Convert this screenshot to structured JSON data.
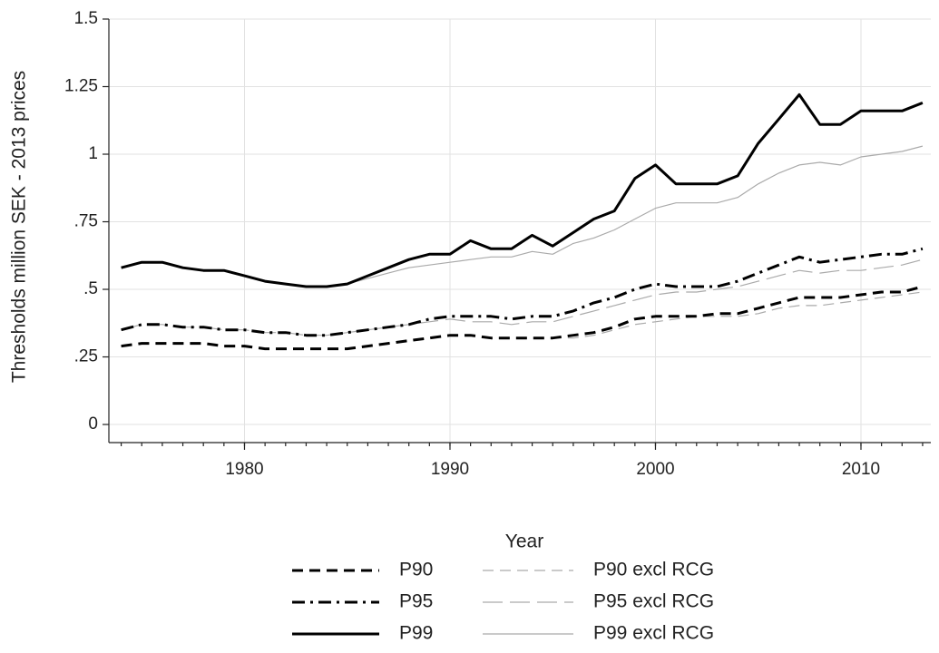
{
  "chart_data": {
    "type": "line",
    "y_label": "Thresholds million SEK - 2013 prices",
    "x_label": "Year",
    "x": [
      1974,
      1975,
      1976,
      1977,
      1978,
      1979,
      1980,
      1981,
      1982,
      1983,
      1984,
      1985,
      1986,
      1987,
      1988,
      1989,
      1990,
      1991,
      1992,
      1993,
      1994,
      1995,
      1996,
      1997,
      1998,
      1999,
      2000,
      2001,
      2002,
      2003,
      2004,
      2005,
      2006,
      2007,
      2008,
      2009,
      2010,
      2011,
      2012,
      2013
    ],
    "series": [
      {
        "name": "P90",
        "color": "#000000",
        "dash": "dash",
        "values": [
          0.29,
          0.3,
          0.3,
          0.3,
          0.3,
          0.29,
          0.29,
          0.28,
          0.28,
          0.28,
          0.28,
          0.28,
          0.29,
          0.3,
          0.31,
          0.32,
          0.33,
          0.33,
          0.32,
          0.32,
          0.32,
          0.32,
          0.33,
          0.34,
          0.36,
          0.39,
          0.4,
          0.4,
          0.4,
          0.41,
          0.41,
          0.43,
          0.45,
          0.47,
          0.47,
          0.47,
          0.48,
          0.49,
          0.49,
          0.51
        ]
      },
      {
        "name": "P95",
        "color": "#000000",
        "dash": "dashdot",
        "values": [
          0.35,
          0.37,
          0.37,
          0.36,
          0.36,
          0.35,
          0.35,
          0.34,
          0.34,
          0.33,
          0.33,
          0.34,
          0.35,
          0.36,
          0.37,
          0.39,
          0.4,
          0.4,
          0.4,
          0.39,
          0.4,
          0.4,
          0.42,
          0.45,
          0.47,
          0.5,
          0.52,
          0.51,
          0.51,
          0.51,
          0.53,
          0.56,
          0.59,
          0.62,
          0.6,
          0.61,
          0.62,
          0.63,
          0.63,
          0.65
        ]
      },
      {
        "name": "P99",
        "color": "#000000",
        "dash": "solid",
        "values": [
          0.58,
          0.6,
          0.6,
          0.58,
          0.57,
          0.57,
          0.55,
          0.53,
          0.52,
          0.51,
          0.51,
          0.52,
          0.55,
          0.58,
          0.61,
          0.63,
          0.63,
          0.68,
          0.65,
          0.65,
          0.7,
          0.66,
          0.71,
          0.76,
          0.79,
          0.91,
          0.96,
          0.89,
          0.89,
          0.89,
          0.92,
          1.04,
          1.13,
          1.22,
          1.11,
          1.11,
          1.16,
          1.16,
          1.16,
          1.19
        ]
      },
      {
        "name": "P90 excl RCG",
        "color": "#aaaaaa",
        "dash": "dash",
        "values": [
          0.29,
          0.3,
          0.3,
          0.3,
          0.3,
          0.29,
          0.29,
          0.28,
          0.28,
          0.28,
          0.28,
          0.28,
          0.29,
          0.3,
          0.31,
          0.32,
          0.33,
          0.33,
          0.32,
          0.32,
          0.32,
          0.32,
          0.32,
          0.33,
          0.35,
          0.37,
          0.38,
          0.39,
          0.4,
          0.4,
          0.4,
          0.41,
          0.43,
          0.44,
          0.44,
          0.45,
          0.46,
          0.47,
          0.48,
          0.49
        ]
      },
      {
        "name": "P95 excl RCG",
        "color": "#aaaaaa",
        "dash": "longdash",
        "values": [
          0.35,
          0.37,
          0.37,
          0.36,
          0.36,
          0.35,
          0.35,
          0.34,
          0.34,
          0.33,
          0.33,
          0.34,
          0.35,
          0.36,
          0.37,
          0.38,
          0.39,
          0.38,
          0.38,
          0.37,
          0.38,
          0.38,
          0.4,
          0.42,
          0.44,
          0.46,
          0.48,
          0.49,
          0.49,
          0.5,
          0.51,
          0.53,
          0.55,
          0.57,
          0.56,
          0.57,
          0.57,
          0.58,
          0.59,
          0.61
        ]
      },
      {
        "name": "P99 excl RCG",
        "color": "#aaaaaa",
        "dash": "solid",
        "values": [
          0.58,
          0.6,
          0.6,
          0.58,
          0.57,
          0.57,
          0.55,
          0.53,
          0.52,
          0.51,
          0.51,
          0.52,
          0.54,
          0.56,
          0.58,
          0.59,
          0.6,
          0.61,
          0.62,
          0.62,
          0.64,
          0.63,
          0.67,
          0.69,
          0.72,
          0.76,
          0.8,
          0.82,
          0.82,
          0.82,
          0.84,
          0.89,
          0.93,
          0.96,
          0.97,
          0.96,
          0.99,
          1.0,
          1.01,
          1.03
        ]
      }
    ],
    "xlim": [
      1973.4,
      2013.4
    ],
    "xticks": [
      1980,
      1990,
      2000,
      2010
    ],
    "ylim": [
      -0.067,
      1.5
    ],
    "yticks": [
      0,
      {
        "value": 0.25,
        "label": ".25"
      },
      {
        "value": 0.5,
        "label": ".5"
      },
      {
        "value": 0.75,
        "label": ".75"
      },
      1,
      1.25,
      1.5
    ],
    "grid": true,
    "legend_position": "bottom"
  }
}
